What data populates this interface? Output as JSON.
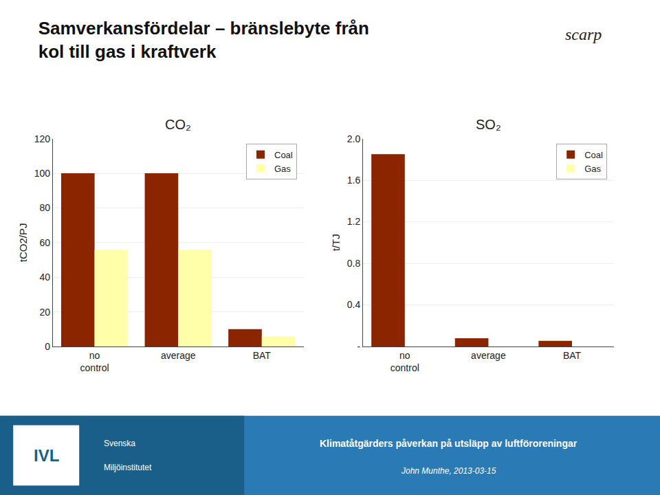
{
  "title": "Samverkansfördelar – bränslebyte från\nkol till gas i kraftverk",
  "annotations": [
    "scarp",
    "IVL",
    "Svenska",
    "Miljöinstitutet",
    "Klimatåtgärders påverkan på utsläpp av luftföroreningar",
    "John Munthe, 2013-03-15"
  ],
  "chart_data": [
    {
      "type": "bar",
      "title": "CO₂",
      "ylabel": "tCO2/PJ",
      "categories": [
        "no\ncontrol",
        "average",
        "BAT"
      ],
      "series": [
        {
          "name": "Coal",
          "color": "#8B2500",
          "values": [
            100,
            100,
            10
          ]
        },
        {
          "name": "Gas",
          "color": "#FFFFAA",
          "values": [
            56,
            56,
            6
          ]
        }
      ],
      "ylim": [
        0,
        120
      ],
      "yticks": [
        0,
        20,
        40,
        60,
        80,
        100,
        120
      ],
      "grid": true,
      "legend": "upper right"
    },
    {
      "type": "bar",
      "title": "SO₂",
      "ylabel": "t/TJ",
      "categories": [
        "no\ncontrol",
        "average",
        "BAT"
      ],
      "series": [
        {
          "name": "Coal",
          "color": "#8B2500",
          "values": [
            1.85,
            0.08,
            0.055
          ]
        },
        {
          "name": "Gas",
          "color": "#FFFFAA",
          "values": [
            0.0,
            0.0,
            0.0
          ]
        }
      ],
      "ylim": [
        0,
        2.0
      ],
      "yticks": [
        {
          "value": 0,
          "label": "-"
        },
        0.4,
        0.8,
        1.2,
        {
          "value": 1.6,
          "label": "1.6"
        },
        {
          "value": 2.0,
          "label": "2.0"
        }
      ],
      "grid": true,
      "legend": "upper right"
    }
  ]
}
